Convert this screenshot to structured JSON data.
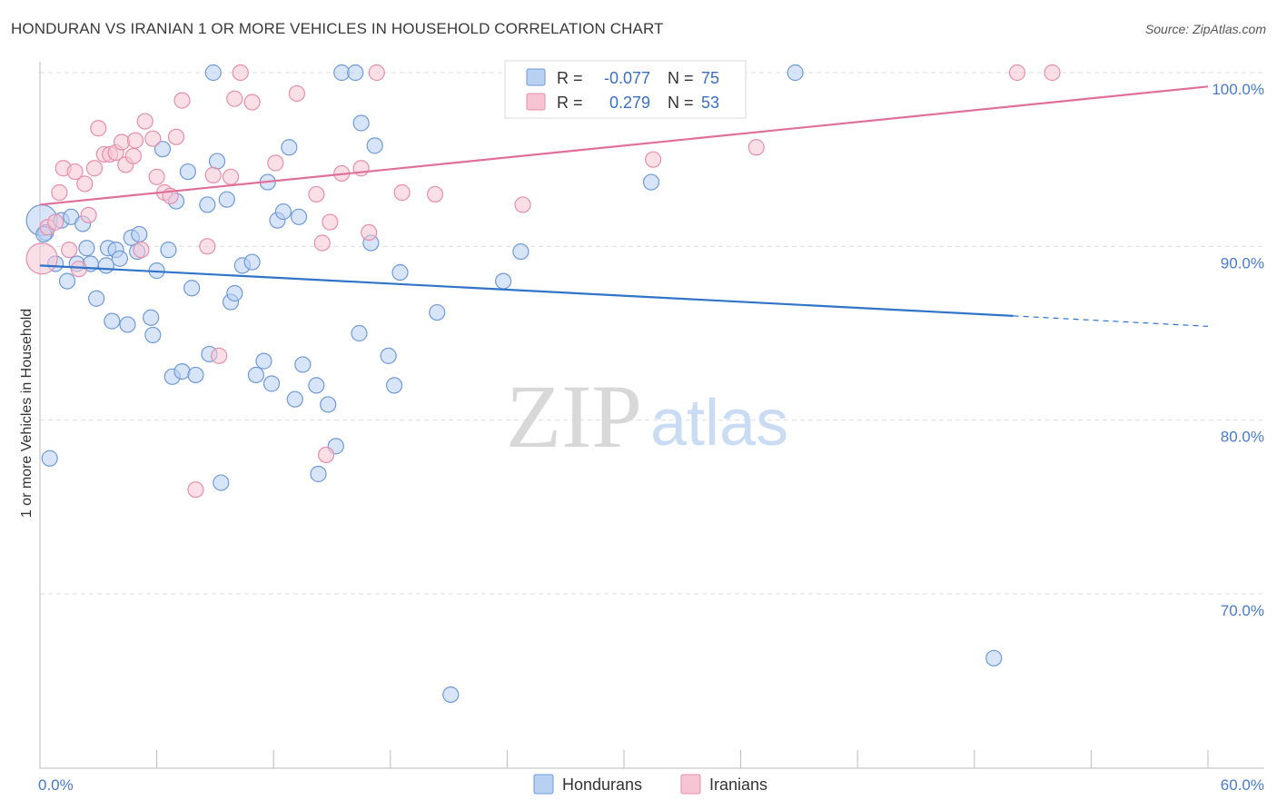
{
  "title": "HONDURAN VS IRANIAN 1 OR MORE VEHICLES IN HOUSEHOLD CORRELATION CHART",
  "source": "Source: ZipAtlas.com",
  "watermark": {
    "zip": "ZIP",
    "atlas": "atlas"
  },
  "colors": {
    "hondurans_fill": "#b8d0f2",
    "hondurans_stroke": "#6f9ad8",
    "hondurans_line": "#2f74c8",
    "iranians_fill": "#f6c4d3",
    "iranians_stroke": "#e58fab",
    "iranians_line": "#e0709a",
    "grid": "#dddddd",
    "tick_label": "#4a7bc8"
  },
  "legend": {
    "rows": [
      {
        "r_label": "R =",
        "r_value": "-0.077",
        "n_label": "N =",
        "n_value": "75",
        "series": "hondurans"
      },
      {
        "r_label": "R =",
        "r_value": "0.279",
        "n_label": "N =",
        "n_value": "53",
        "series": "iranians"
      }
    ]
  },
  "chart_data": {
    "type": "scatter",
    "title": "HONDURAN VS IRANIAN 1 OR MORE VEHICLES IN HOUSEHOLD CORRELATION CHART",
    "xlabel": "",
    "ylabel": "1 or more Vehicles in Household",
    "xlim": [
      0,
      60
    ],
    "ylim": [
      60.5,
      101.8
    ],
    "x_tick_labels": [
      {
        "value": 0,
        "label": "0.0%"
      },
      {
        "value": 60,
        "label": "60.0%"
      }
    ],
    "y_tick_labels": [
      {
        "value": 100,
        "label": "100.0%"
      },
      {
        "value": 90,
        "label": "90.0%"
      },
      {
        "value": 80,
        "label": "80.0%"
      },
      {
        "value": 70,
        "label": "70.0%"
      }
    ],
    "grid": true,
    "legend_position": "bottom-center",
    "series": [
      {
        "name": "Hondurans",
        "key": "hondurans",
        "trend": {
          "x0": 0,
          "y0": 88.9,
          "x1": 50.0,
          "y1": 86.0,
          "dash_to_x": 60,
          "dash_to_y": 85.4
        },
        "points": [
          [
            0.1,
            91.5,
            2.0
          ],
          [
            0.3,
            90.8,
            1.0
          ],
          [
            0.5,
            77.8,
            1.0
          ],
          [
            0.8,
            89.0,
            1.0
          ],
          [
            1.1,
            91.5,
            1.0
          ],
          [
            1.4,
            88.0,
            1.0
          ],
          [
            1.6,
            91.7,
            1.0
          ],
          [
            1.9,
            89.0,
            1.0
          ],
          [
            2.2,
            91.3,
            1.0
          ],
          [
            2.4,
            89.9,
            1.0
          ],
          [
            2.6,
            89.0,
            1.0
          ],
          [
            2.9,
            87.0,
            1.0
          ],
          [
            3.4,
            88.9,
            1.0
          ],
          [
            3.5,
            89.9,
            1.0
          ],
          [
            3.7,
            85.7,
            1.0
          ],
          [
            3.9,
            89.8,
            1.0
          ],
          [
            4.1,
            89.3,
            1.0
          ],
          [
            4.5,
            85.5,
            1.0
          ],
          [
            4.7,
            90.5,
            1.0
          ],
          [
            5.0,
            89.7,
            1.0
          ],
          [
            5.1,
            90.7,
            1.0
          ],
          [
            5.7,
            85.9,
            1.0
          ],
          [
            5.8,
            84.9,
            1.0
          ],
          [
            6.0,
            88.6,
            1.0
          ],
          [
            6.3,
            95.6,
            1.0
          ],
          [
            6.6,
            89.8,
            1.0
          ],
          [
            6.8,
            82.5,
            1.0
          ],
          [
            7.0,
            92.6,
            1.0
          ],
          [
            7.3,
            82.8,
            1.0
          ],
          [
            7.6,
            94.3,
            1.0
          ],
          [
            7.8,
            87.6,
            1.0
          ],
          [
            8.0,
            82.6,
            1.0
          ],
          [
            8.6,
            92.4,
            1.0
          ],
          [
            8.7,
            83.8,
            1.0
          ],
          [
            8.9,
            100.0,
            1.0
          ],
          [
            9.1,
            94.9,
            1.0
          ],
          [
            9.3,
            76.4,
            1.0
          ],
          [
            9.6,
            92.7,
            1.0
          ],
          [
            9.8,
            86.8,
            1.0
          ],
          [
            10.0,
            87.3,
            1.0
          ],
          [
            10.4,
            88.9,
            1.0
          ],
          [
            10.9,
            89.1,
            1.0
          ],
          [
            11.1,
            82.6,
            1.0
          ],
          [
            11.5,
            83.4,
            1.0
          ],
          [
            11.7,
            93.7,
            1.0
          ],
          [
            11.9,
            82.1,
            1.0
          ],
          [
            12.2,
            91.5,
            1.0
          ],
          [
            12.5,
            92.0,
            1.0
          ],
          [
            12.8,
            95.7,
            1.0
          ],
          [
            13.1,
            81.2,
            1.0
          ],
          [
            13.3,
            91.7,
            1.0
          ],
          [
            13.5,
            83.2,
            1.0
          ],
          [
            14.2,
            82.0,
            1.0
          ],
          [
            14.3,
            76.9,
            1.0
          ],
          [
            14.8,
            80.9,
            1.0
          ],
          [
            15.2,
            78.5,
            1.0
          ],
          [
            15.5,
            100.0,
            1.0
          ],
          [
            16.2,
            100.0,
            1.0
          ],
          [
            16.4,
            85.0,
            1.0
          ],
          [
            16.5,
            97.1,
            1.0
          ],
          [
            17.0,
            90.2,
            1.0
          ],
          [
            17.2,
            95.8,
            1.0
          ],
          [
            17.9,
            83.7,
            1.0
          ],
          [
            18.2,
            82.0,
            1.0
          ],
          [
            18.5,
            88.5,
            1.0
          ],
          [
            20.4,
            86.2,
            1.0
          ],
          [
            21.1,
            64.2,
            1.0
          ],
          [
            23.8,
            88.0,
            1.0
          ],
          [
            24.7,
            89.7,
            1.0
          ],
          [
            27.0,
            100.0,
            1.0
          ],
          [
            28.0,
            100.0,
            1.0
          ],
          [
            31.4,
            93.7,
            1.0
          ],
          [
            38.8,
            100.0,
            1.0
          ],
          [
            49.0,
            66.3,
            1.0
          ],
          [
            0.2,
            90.7,
            1.0
          ]
        ]
      },
      {
        "name": "Iranians",
        "key": "iranians",
        "trend": {
          "x0": 0,
          "y0": 92.4,
          "x1": 60,
          "y1": 99.2
        },
        "points": [
          [
            0.1,
            89.3,
            2.0
          ],
          [
            0.4,
            91.1,
            1.0
          ],
          [
            0.8,
            91.4,
            1.0
          ],
          [
            1.0,
            93.1,
            1.0
          ],
          [
            1.2,
            94.5,
            1.0
          ],
          [
            1.5,
            89.8,
            1.0
          ],
          [
            1.8,
            94.3,
            1.0
          ],
          [
            2.0,
            88.7,
            1.0
          ],
          [
            2.3,
            93.6,
            1.0
          ],
          [
            2.5,
            91.8,
            1.0
          ],
          [
            2.8,
            94.5,
            1.0
          ],
          [
            3.0,
            96.8,
            1.0
          ],
          [
            3.3,
            95.3,
            1.0
          ],
          [
            3.6,
            95.3,
            1.0
          ],
          [
            3.9,
            95.4,
            1.0
          ],
          [
            4.2,
            96.0,
            1.0
          ],
          [
            4.4,
            94.7,
            1.0
          ],
          [
            4.8,
            95.2,
            1.0
          ],
          [
            4.9,
            96.1,
            1.0
          ],
          [
            5.2,
            89.8,
            1.0
          ],
          [
            5.4,
            97.2,
            1.0
          ],
          [
            5.8,
            96.2,
            1.0
          ],
          [
            6.0,
            94.0,
            1.0
          ],
          [
            6.4,
            93.1,
            1.0
          ],
          [
            6.7,
            92.9,
            1.0
          ],
          [
            7.0,
            96.3,
            1.0
          ],
          [
            7.3,
            98.4,
            1.0
          ],
          [
            8.0,
            76.0,
            1.0
          ],
          [
            8.6,
            90.0,
            1.0
          ],
          [
            8.9,
            94.1,
            1.0
          ],
          [
            9.2,
            83.7,
            1.0
          ],
          [
            9.8,
            94.0,
            1.0
          ],
          [
            10.0,
            98.5,
            1.0
          ],
          [
            10.3,
            100.0,
            1.0
          ],
          [
            10.9,
            98.3,
            1.0
          ],
          [
            12.1,
            94.8,
            1.0
          ],
          [
            13.2,
            98.8,
            1.0
          ],
          [
            14.2,
            93.0,
            1.0
          ],
          [
            14.5,
            90.2,
            1.0
          ],
          [
            14.7,
            78.0,
            1.0
          ],
          [
            14.9,
            91.4,
            1.0
          ],
          [
            15.5,
            94.2,
            1.0
          ],
          [
            16.5,
            94.5,
            1.0
          ],
          [
            16.9,
            90.8,
            1.0
          ],
          [
            17.3,
            100.0,
            1.0
          ],
          [
            18.6,
            93.1,
            1.0
          ],
          [
            20.3,
            93.0,
            1.0
          ],
          [
            24.8,
            92.4,
            1.0
          ],
          [
            31.5,
            95.0,
            1.0
          ],
          [
            35.4,
            100.0,
            1.0
          ],
          [
            36.8,
            95.7,
            1.0
          ],
          [
            50.2,
            100.0,
            1.0
          ],
          [
            52.0,
            100.0,
            1.0
          ]
        ]
      }
    ]
  },
  "bottom_legend": {
    "items": [
      {
        "label": "Hondurans",
        "series": "hondurans"
      },
      {
        "label": "Iranians",
        "series": "iranians"
      }
    ]
  }
}
